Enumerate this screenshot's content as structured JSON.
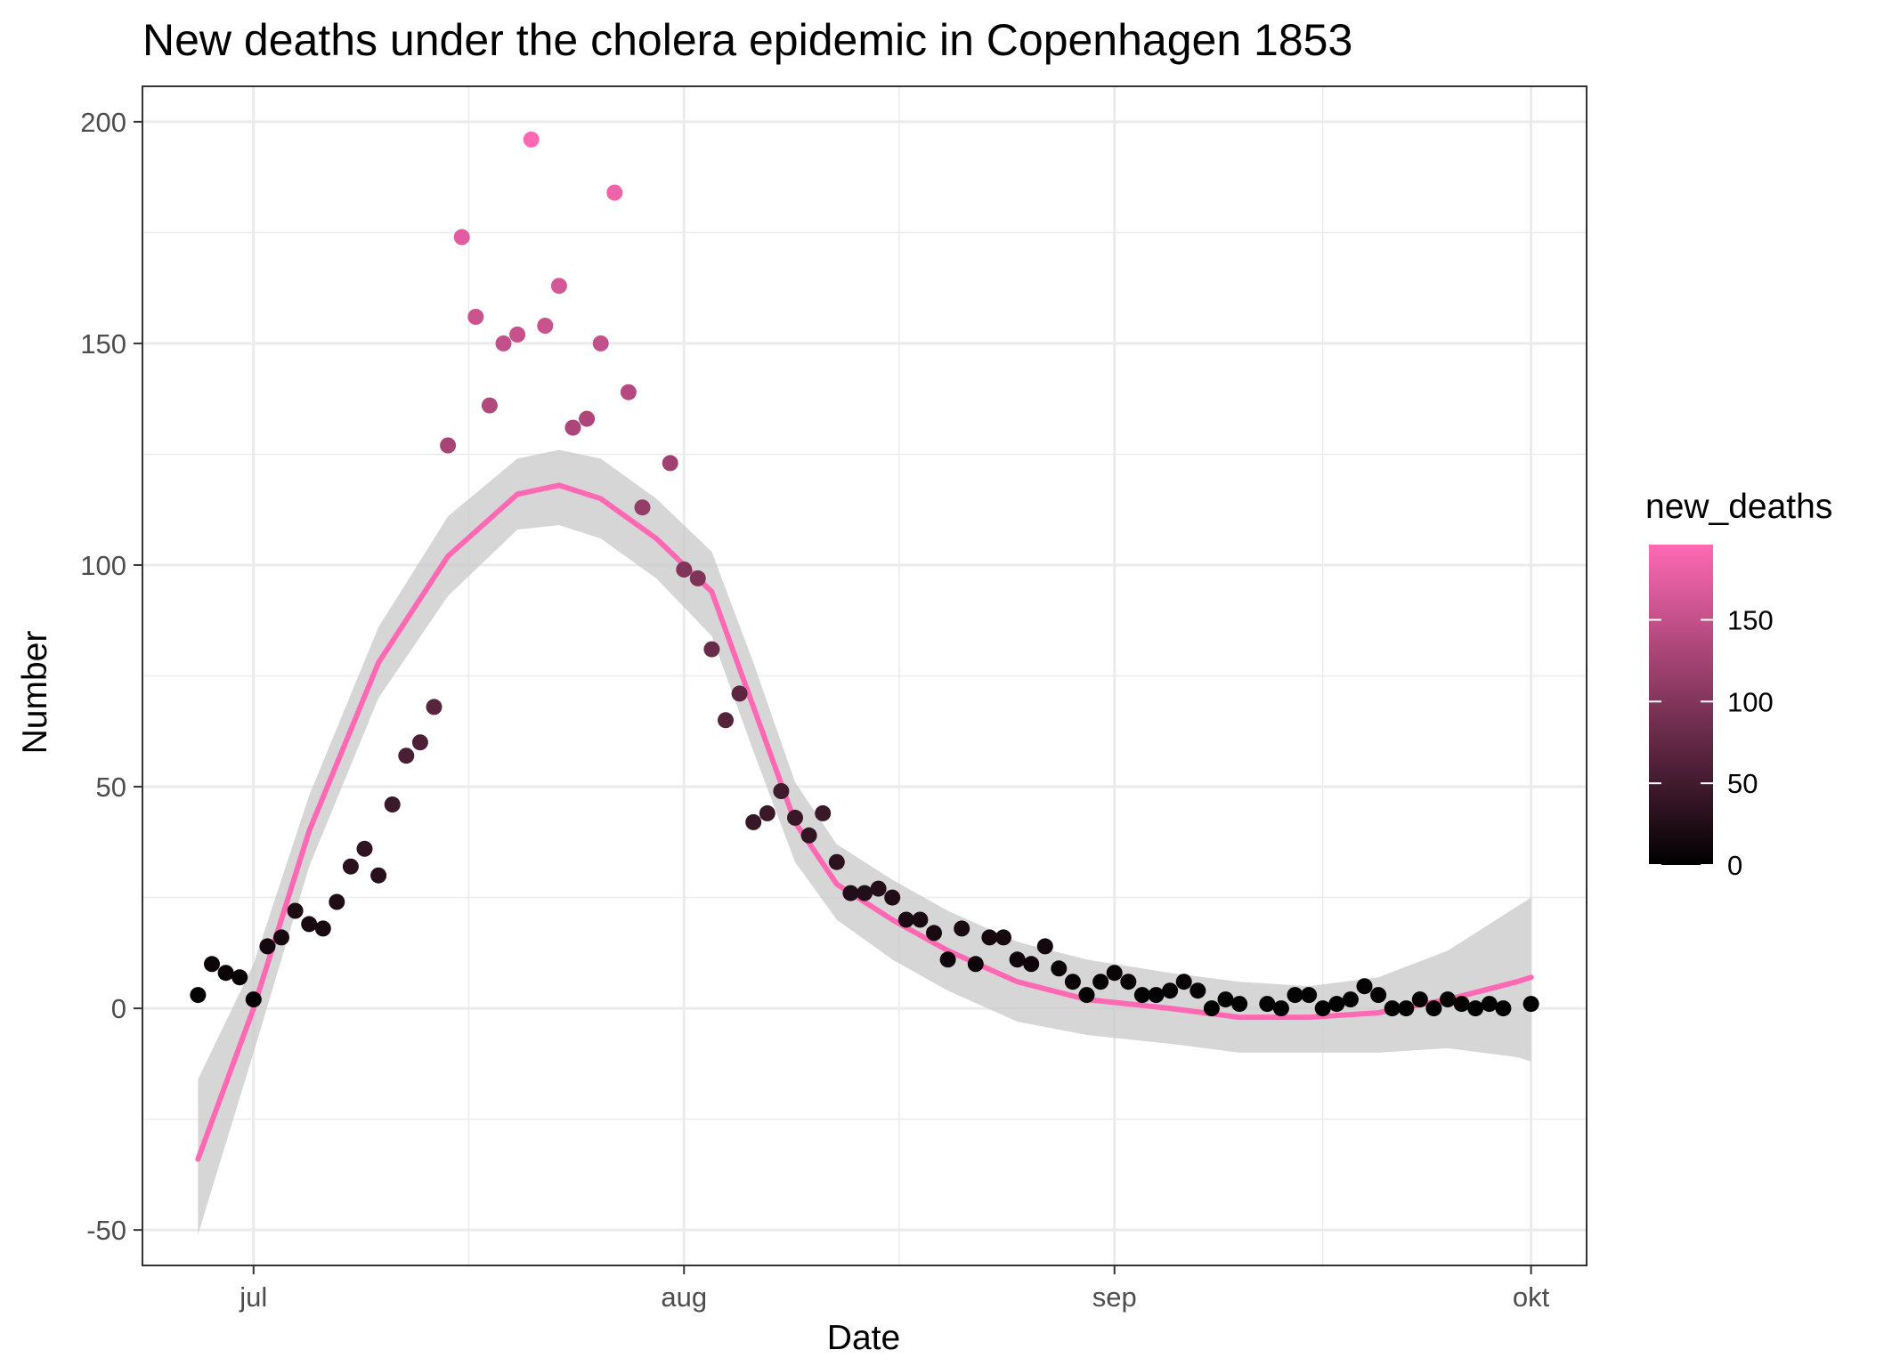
{
  "chart_data": {
    "type": "scatter",
    "title": "New deaths under the cholera epidemic in Copenhagen 1853",
    "xlabel": "Date",
    "ylabel": "Number",
    "x_ticks": [
      {
        "label": "jul",
        "date": "1853-07-01"
      },
      {
        "label": "aug",
        "date": "1853-08-01"
      },
      {
        "label": "sep",
        "date": "1853-09-01"
      },
      {
        "label": "okt",
        "date": "1853-10-01"
      }
    ],
    "y_ticks": [
      -50,
      0,
      50,
      100,
      150,
      200
    ],
    "xlim": [
      "1853-06-23",
      "1853-10-05"
    ],
    "ylim": [
      -58,
      208
    ],
    "grid": true,
    "legend": {
      "title": "new_deaths",
      "position": "right",
      "ticks": [
        0,
        50,
        100,
        150
      ],
      "range": [
        0,
        196
      ],
      "color_low": "#000000",
      "color_high": "#ff69b4"
    },
    "colors": {
      "smooth_line": "#ff69b4",
      "ribbon": "#c8c8c8",
      "grid": "#ebebeb",
      "panel_border": "#333333"
    },
    "series": [
      {
        "kind": "points",
        "x": [
          "1853-06-27",
          "1853-06-28",
          "1853-06-29",
          "1853-06-30",
          "1853-07-01",
          "1853-07-02",
          "1853-07-03",
          "1853-07-04",
          "1853-07-05",
          "1853-07-06",
          "1853-07-07",
          "1853-07-08",
          "1853-07-09",
          "1853-07-10",
          "1853-07-11",
          "1853-07-12",
          "1853-07-13",
          "1853-07-14",
          "1853-07-15",
          "1853-07-16",
          "1853-07-17",
          "1853-07-18",
          "1853-07-19",
          "1853-07-20",
          "1853-07-21",
          "1853-07-22",
          "1853-07-23",
          "1853-07-24",
          "1853-07-25",
          "1853-07-26",
          "1853-07-27",
          "1853-07-28",
          "1853-07-29",
          "1853-07-30",
          "1853-07-31",
          "1853-08-01",
          "1853-08-02",
          "1853-08-03",
          "1853-08-04",
          "1853-08-05",
          "1853-08-06",
          "1853-08-07",
          "1853-08-08",
          "1853-08-09",
          "1853-08-10",
          "1853-08-11",
          "1853-08-12",
          "1853-08-13",
          "1853-08-14",
          "1853-08-15",
          "1853-08-16",
          "1853-08-17",
          "1853-08-18",
          "1853-08-19",
          "1853-08-20",
          "1853-08-21",
          "1853-08-22",
          "1853-08-23",
          "1853-08-24",
          "1853-08-25",
          "1853-08-26",
          "1853-08-27",
          "1853-08-28",
          "1853-08-29",
          "1853-08-30",
          "1853-08-31",
          "1853-09-01",
          "1853-09-02",
          "1853-09-03",
          "1853-09-04",
          "1853-09-05",
          "1853-09-06",
          "1853-09-07",
          "1853-09-08",
          "1853-09-09",
          "1853-09-10",
          "1853-09-11",
          "1853-09-12",
          "1853-09-13",
          "1853-09-14",
          "1853-09-15",
          "1853-09-16",
          "1853-09-17",
          "1853-09-18",
          "1853-09-19",
          "1853-09-20",
          "1853-09-21",
          "1853-09-22",
          "1853-09-23",
          "1853-09-24",
          "1853-09-25",
          "1853-09-26",
          "1853-09-27",
          "1853-09-28",
          "1853-09-29",
          "1853-09-30",
          "1853-10-01"
        ],
        "y": [
          3,
          10,
          8,
          7,
          2,
          14,
          16,
          22,
          19,
          18,
          24,
          32,
          36,
          30,
          46,
          57,
          60,
          68,
          127,
          174,
          156,
          136,
          150,
          152,
          196,
          154,
          163,
          131,
          133,
          150,
          184,
          139,
          113,
          null,
          123,
          99,
          97,
          81,
          65,
          71,
          42,
          44,
          49,
          43,
          39,
          44,
          33,
          26,
          26,
          27,
          25,
          20,
          20,
          17,
          11,
          18,
          10,
          16,
          16,
          11,
          10,
          14,
          9,
          6,
          3,
          6,
          8,
          6,
          3,
          3,
          4,
          6,
          4,
          0,
          2,
          1,
          null,
          1,
          0,
          3,
          3,
          0,
          1,
          2,
          5,
          3,
          0,
          0,
          2,
          0,
          2,
          1,
          0,
          1,
          0,
          null,
          1
        ]
      },
      {
        "kind": "smooth",
        "x": [
          "1853-06-27",
          "1853-07-01",
          "1853-07-05",
          "1853-07-10",
          "1853-07-15",
          "1853-07-20",
          "1853-07-23",
          "1853-07-26",
          "1853-07-30",
          "1853-08-03",
          "1853-08-06",
          "1853-08-09",
          "1853-08-12",
          "1853-08-16",
          "1853-08-20",
          "1853-08-25",
          "1853-08-30",
          "1853-09-05",
          "1853-09-10",
          "1853-09-15",
          "1853-09-20",
          "1853-09-25",
          "1853-09-30",
          "1853-10-01"
        ],
        "y": [
          -34,
          0,
          40,
          78,
          102,
          116,
          118,
          115,
          106,
          94,
          68,
          42,
          28,
          20,
          13,
          6,
          2,
          0,
          -2,
          -2,
          -1,
          2,
          6,
          7
        ],
        "ci_low": [
          -51,
          -10,
          32,
          70,
          93,
          108,
          109,
          106,
          97,
          84,
          58,
          33,
          20,
          11,
          4,
          -3,
          -6,
          -8,
          -10,
          -10,
          -10,
          -9,
          -11,
          -12
        ],
        "ci_high": [
          -16,
          10,
          48,
          86,
          111,
          124,
          126,
          124,
          115,
          103,
          78,
          51,
          37,
          29,
          22,
          15,
          11,
          8,
          6,
          5,
          7,
          13,
          23,
          25
        ]
      }
    ]
  }
}
